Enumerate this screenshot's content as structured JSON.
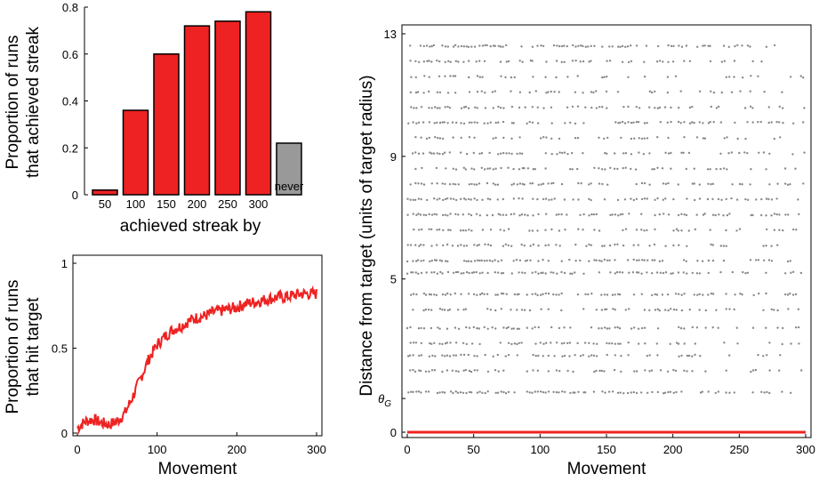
{
  "chart_data": [
    {
      "type": "bar",
      "categories": [
        "50",
        "100",
        "150",
        "200",
        "250",
        "300",
        "never"
      ],
      "values": [
        0.02,
        0.36,
        0.6,
        0.72,
        0.74,
        0.78,
        0.22
      ],
      "colors": [
        "#ee2222",
        "#ee2222",
        "#ee2222",
        "#ee2222",
        "#ee2222",
        "#ee2222",
        "#999999"
      ],
      "ylabel_line1": "Proportion of runs",
      "ylabel_line2": "that achieved streak",
      "xlabel": "achieved streak by",
      "ylim": [
        0,
        0.8
      ],
      "yticks": [
        "0",
        "0.2",
        "0.4",
        "0.6",
        "0.8"
      ]
    },
    {
      "type": "line",
      "series_color": "#ee2222",
      "ylabel_line1": "Proportion of runs",
      "ylabel_line2": "that hit target",
      "xlabel": "Movement",
      "xlim": [
        0,
        300
      ],
      "ylim": [
        0,
        1
      ],
      "xticks": [
        "0",
        "100",
        "200",
        "300"
      ],
      "yticks": [
        "0",
        "0.5",
        "1"
      ],
      "x": [
        0,
        10,
        20,
        30,
        40,
        50,
        60,
        70,
        80,
        90,
        100,
        110,
        120,
        130,
        140,
        150,
        160,
        170,
        180,
        190,
        200,
        210,
        220,
        230,
        240,
        250,
        260,
        270,
        280,
        290,
        300
      ],
      "y": [
        0.03,
        0.07,
        0.08,
        0.06,
        0.05,
        0.07,
        0.12,
        0.22,
        0.33,
        0.44,
        0.52,
        0.57,
        0.61,
        0.63,
        0.66,
        0.68,
        0.69,
        0.71,
        0.72,
        0.73,
        0.74,
        0.76,
        0.77,
        0.78,
        0.79,
        0.8,
        0.8,
        0.81,
        0.82,
        0.82,
        0.82
      ]
    },
    {
      "type": "scatter",
      "point_color": "#888888",
      "baseline_color": "#ee2222",
      "ylabel": "Distance from target (units of target radius)",
      "xlabel": "Movement",
      "xlim": [
        0,
        300
      ],
      "ylim": [
        0,
        13
      ],
      "xticks": [
        "0",
        "50",
        "100",
        "150",
        "200",
        "250",
        "300"
      ],
      "yticks": [
        "0",
        "θ",
        "5",
        "9",
        "13"
      ],
      "theta_subscript": "G",
      "theta_value": 1.1,
      "row_levels": [
        1.3,
        2.0,
        2.5,
        2.9,
        3.4,
        4.0,
        4.5,
        5.2,
        5.6,
        6.1,
        6.6,
        7.1,
        7.6,
        8.1,
        8.6,
        9.1,
        9.6,
        10.1,
        10.6,
        11.1,
        11.6,
        12.1,
        12.6
      ]
    }
  ]
}
